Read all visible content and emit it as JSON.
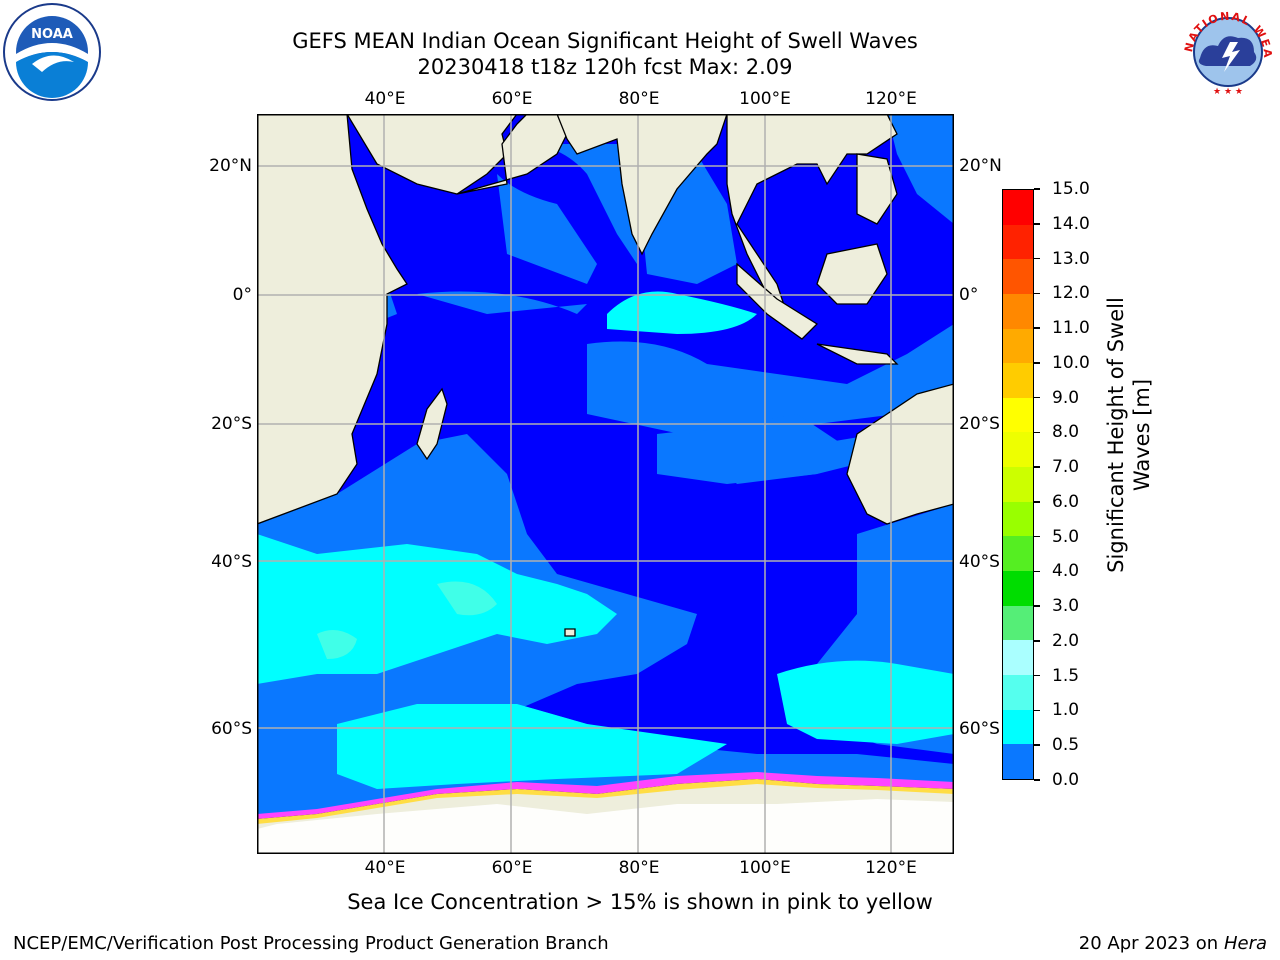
{
  "header": {
    "title_line1": "GEFS MEAN Indian Ocean Significant Height of Swell Waves",
    "title_line2": "20230418 t18z 120h fcst   Max: 2.09"
  },
  "logos": {
    "left": {
      "icon": "noaa-logo-icon",
      "text": "NOAA"
    },
    "right": {
      "icon": "national-weather-service-logo-icon",
      "text": "NATIONAL WEATHER SERVICE"
    }
  },
  "map": {
    "lon_ticks": [
      "40°E",
      "60°E",
      "80°E",
      "100°E",
      "120°E"
    ],
    "lat_ticks_left": [
      "20°N",
      "0°",
      "20°S",
      "40°S",
      "60°S"
    ],
    "lat_ticks_right": [
      "20°N",
      "0°",
      "20°S",
      "40°S",
      "60°S"
    ],
    "colors": {
      "land": "#eeeedc",
      "band_0_0.5": "#0000ff",
      "band_0.5_1.0": "#0a78ff",
      "band_1.0_1.5": "#00ffff",
      "band_1.5_2.0": "#40ffe8",
      "ice": "#ff44ff",
      "ice_high": "#ffdd44"
    }
  },
  "colorbar": {
    "label": "Significant Height of Swell Waves [m]",
    "label_line1": "Significant Height of Swell",
    "label_line2": "Waves [m]",
    "ticks": [
      "15.0",
      "14.0",
      "13.0",
      "12.0",
      "11.0",
      "10.0",
      "9.0",
      "8.0",
      "7.0",
      "6.0",
      "5.0",
      "4.0",
      "3.0",
      "2.0",
      "1.5",
      "1.0",
      "0.5",
      "0.0"
    ],
    "colors": [
      "#ff0000",
      "#ff2200",
      "#ff5500",
      "#ff8800",
      "#ffaa00",
      "#ffcc00",
      "#ffff00",
      "#eeff00",
      "#ccff00",
      "#99ff00",
      "#55ee22",
      "#00dd00",
      "#55ee77",
      "#aaffff",
      "#55ffee",
      "#00ffff",
      "#0a78ff",
      "#0000ff"
    ]
  },
  "caption": "Sea Ice Concentration > 15% is shown in pink to yellow",
  "footer": {
    "left": "NCEP/EMC/Verification Post Processing Product Generation Branch",
    "right_date": "20 Apr 2023 on ",
    "right_host": "Hera"
  }
}
